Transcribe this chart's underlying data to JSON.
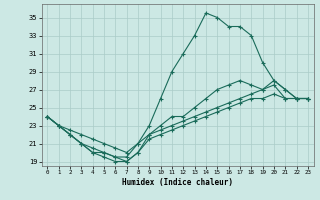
{
  "xlabel": "Humidex (Indice chaleur)",
  "bg_color": "#cce8e4",
  "grid_color": "#aaccc8",
  "line_color": "#1a6b5a",
  "xlim": [
    -0.5,
    23.5
  ],
  "ylim": [
    18.5,
    36.5
  ],
  "xticks": [
    0,
    1,
    2,
    3,
    4,
    5,
    6,
    7,
    8,
    9,
    10,
    11,
    12,
    13,
    14,
    15,
    16,
    17,
    18,
    19,
    20,
    21,
    22,
    23
  ],
  "yticks": [
    19,
    21,
    23,
    25,
    27,
    29,
    31,
    33,
    35
  ],
  "series": [
    {
      "x": [
        0,
        1,
        2,
        3,
        4,
        5,
        6,
        7,
        8,
        9,
        10,
        11,
        12,
        13,
        14,
        15,
        16,
        17,
        18,
        19,
        20,
        21,
        22,
        23
      ],
      "y": [
        24,
        23,
        22,
        21,
        20,
        20,
        19.5,
        19.5,
        21,
        23,
        26,
        29,
        31,
        33,
        35.5,
        35,
        34,
        34,
        33,
        30,
        28,
        27,
        26,
        26
      ]
    },
    {
      "x": [
        0,
        1,
        2,
        3,
        4,
        5,
        6,
        7,
        8,
        9,
        10,
        11,
        12,
        13,
        14,
        15,
        16,
        17,
        18,
        19,
        20,
        21,
        22,
        23
      ],
      "y": [
        24,
        23,
        22,
        21,
        20,
        19.5,
        19,
        19,
        20,
        22,
        23,
        24,
        24,
        25,
        26,
        27,
        27.5,
        28,
        27.5,
        27,
        28,
        27,
        26,
        26
      ]
    },
    {
      "x": [
        0,
        1,
        2,
        3,
        4,
        5,
        6,
        7,
        8,
        9,
        10,
        11,
        12,
        13,
        14,
        15,
        16,
        17,
        18,
        19,
        20,
        21,
        22,
        23
      ],
      "y": [
        24,
        23,
        22.5,
        22,
        21.5,
        21,
        20.5,
        20,
        21,
        22,
        22.5,
        23,
        23.5,
        24,
        24.5,
        25,
        25.5,
        26,
        26.5,
        27,
        27.5,
        26,
        26,
        26
      ]
    },
    {
      "x": [
        0,
        1,
        2,
        3,
        4,
        5,
        6,
        7,
        8,
        9,
        10,
        11,
        12,
        13,
        14,
        15,
        16,
        17,
        18,
        19,
        20,
        21,
        22,
        23
      ],
      "y": [
        24,
        23,
        22,
        21,
        20.5,
        20,
        19.5,
        19,
        20,
        21.5,
        22,
        22.5,
        23,
        23.5,
        24,
        24.5,
        25,
        25.5,
        26,
        26,
        26.5,
        26,
        26,
        26
      ]
    }
  ]
}
